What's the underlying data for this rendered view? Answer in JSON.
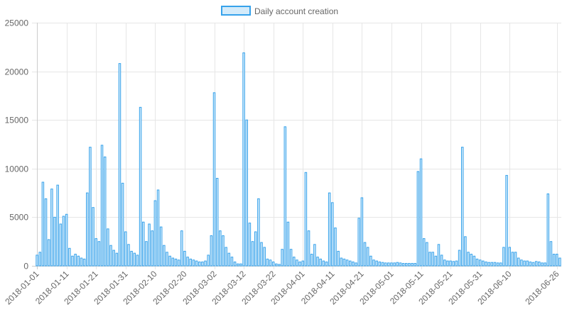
{
  "chart_data": {
    "type": "bar",
    "legend": {
      "position": "top",
      "entries": [
        "Daily account creation"
      ]
    },
    "series": [
      {
        "name": "Daily account creation",
        "color": "#36a2eb",
        "fill": "#d4ebfa",
        "values": [
          1100,
          1400,
          8600,
          6900,
          2700,
          7900,
          5000,
          8300,
          4300,
          5100,
          5300,
          1800,
          1000,
          1200,
          1000,
          800,
          700,
          7500,
          12200,
          6000,
          2800,
          2500,
          12400,
          11200,
          3800,
          2100,
          1600,
          1300,
          20800,
          8500,
          3500,
          2200,
          1500,
          1300,
          1100,
          16300,
          4500,
          2500,
          4300,
          3600,
          6700,
          7800,
          4000,
          2100,
          1400,
          1000,
          800,
          700,
          600,
          3600,
          1500,
          900,
          700,
          600,
          500,
          400,
          400,
          500,
          1100,
          3100,
          17800,
          9000,
          3600,
          3100,
          1900,
          1300,
          900,
          400,
          200,
          200,
          21900,
          15000,
          4400,
          2500,
          3500,
          6900,
          2400,
          1900,
          700,
          600,
          400,
          200,
          150,
          1700,
          14300,
          4500,
          1700,
          900,
          600,
          400,
          500,
          9600,
          3600,
          1200,
          2200,
          900,
          700,
          500,
          400,
          7500,
          6500,
          3900,
          1500,
          800,
          700,
          600,
          500,
          400,
          300,
          4900,
          7000,
          2400,
          1900,
          1000,
          600,
          500,
          400,
          350,
          300,
          300,
          300,
          300,
          350,
          300,
          250,
          250,
          250,
          250,
          250,
          9700,
          11000,
          2800,
          2400,
          1400,
          1400,
          1000,
          2200,
          1100,
          600,
          500,
          500,
          450,
          500,
          1600,
          12200,
          3000,
          1400,
          1200,
          1000,
          700,
          600,
          500,
          400,
          350,
          350,
          350,
          300,
          300,
          1900,
          9300,
          1900,
          1400,
          1400,
          800,
          600,
          500,
          500,
          400,
          350,
          450,
          400,
          300,
          300,
          7400,
          2500,
          1200,
          1200,
          800
        ]
      }
    ],
    "x_tick_labels": [
      {
        "index": 0,
        "label": "2018-01-01"
      },
      {
        "index": 10,
        "label": "2018-01-11"
      },
      {
        "index": 20,
        "label": "2018-01-21"
      },
      {
        "index": 30,
        "label": "2018-01-31"
      },
      {
        "index": 40,
        "label": "2018-02-10"
      },
      {
        "index": 50,
        "label": "2018-02-20"
      },
      {
        "index": 60,
        "label": "2018-03-02"
      },
      {
        "index": 70,
        "label": "2018-03-12"
      },
      {
        "index": 80,
        "label": "2018-03-22"
      },
      {
        "index": 90,
        "label": "2018-04-01"
      },
      {
        "index": 100,
        "label": "2018-04-11"
      },
      {
        "index": 110,
        "label": "2018-04-21"
      },
      {
        "index": 120,
        "label": "2018-05-01"
      },
      {
        "index": 130,
        "label": "2018-05-11"
      },
      {
        "index": 140,
        "label": "2018-05-21"
      },
      {
        "index": 150,
        "label": "2018-05-31"
      },
      {
        "index": 160,
        "label": "2018-06-10"
      },
      {
        "index": 176,
        "label": "2018-06-26"
      }
    ],
    "y_ticks": [
      0,
      5000,
      10000,
      15000,
      20000,
      25000
    ],
    "ylim": [
      0,
      25000
    ],
    "xlabel": "",
    "ylabel": "",
    "grid": true,
    "gridColor": "#e6e6e6",
    "axisColor": "#cccccc",
    "textColor": "#666666"
  }
}
